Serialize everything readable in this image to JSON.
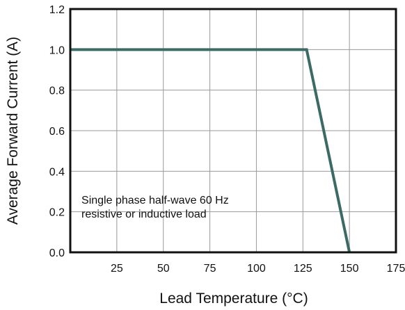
{
  "chart_data": {
    "type": "line",
    "title": "",
    "xlabel": "Lead Temperature (°C)",
    "ylabel": "Average Forward Current (A)",
    "xlim": [
      0,
      175
    ],
    "ylim": [
      0.0,
      1.2
    ],
    "x_ticks": [
      25,
      50,
      75,
      100,
      125,
      150,
      175
    ],
    "x_tick_labels": [
      "25",
      "50",
      "75",
      "100",
      "125",
      "150",
      "175"
    ],
    "y_ticks": [
      0.0,
      0.2,
      0.4,
      0.6,
      0.8,
      1.0,
      1.2
    ],
    "y_tick_labels": [
      "0.0",
      "0.2",
      "0.4",
      "0.6",
      "0.8",
      "1.0",
      "1.2"
    ],
    "x_grid_values": [
      25,
      50,
      75,
      100,
      125,
      150
    ],
    "y_grid_values": [
      0.2,
      0.4,
      0.6,
      0.8,
      1.0
    ],
    "grid": true,
    "legend": "none",
    "series": [
      {
        "x": [
          0,
          127,
          150
        ],
        "y": [
          1.0,
          1.0,
          0.0
        ],
        "color": "#3c6a64"
      }
    ],
    "annotations": [
      {
        "lines": [
          "Single phase half-wave 60 Hz",
          "resistive or inductive load"
        ],
        "x": 6,
        "y": 0.24
      }
    ],
    "colors": {
      "axis": "#111111",
      "grid": "#999999",
      "line": "#3c6a64"
    }
  }
}
